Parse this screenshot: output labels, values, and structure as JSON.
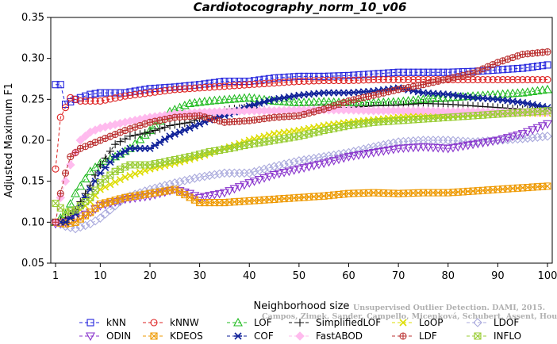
{
  "chart_data": {
    "type": "line",
    "title": "Cardiotocography_norm_10_v06",
    "xlabel": "Neighborhood size",
    "ylabel": "Adjusted Maximum F1",
    "xlim": [
      1,
      100
    ],
    "ylim": [
      0.05,
      0.35
    ],
    "xticks": [
      1,
      10,
      20,
      30,
      40,
      50,
      60,
      70,
      80,
      90,
      100
    ],
    "yticks": [
      0.05,
      0.1,
      0.15,
      0.2,
      0.25,
      0.3,
      0.35
    ],
    "grid": false,
    "legend_position": "bottom",
    "watermark": [
      "Unsupervised Outlier Detection. DAMI, 2015.",
      "Campos, Zimek, Sander, Campello, Micenková, Schubert, Assent, Houle"
    ],
    "series": [
      {
        "name": "kNN",
        "color": "#2222dd",
        "marker": "square",
        "dash": "4,3",
        "points": [
          [
            1,
            0.268
          ],
          [
            2,
            0.268
          ],
          [
            3,
            0.244
          ],
          [
            5,
            0.25
          ],
          [
            8,
            0.256
          ],
          [
            10,
            0.258
          ],
          [
            15,
            0.258
          ],
          [
            20,
            0.263
          ],
          [
            25,
            0.265
          ],
          [
            30,
            0.268
          ],
          [
            35,
            0.272
          ],
          [
            40,
            0.272
          ],
          [
            45,
            0.276
          ],
          [
            50,
            0.278
          ],
          [
            55,
            0.278
          ],
          [
            60,
            0.279
          ],
          [
            65,
            0.281
          ],
          [
            70,
            0.283
          ],
          [
            75,
            0.283
          ],
          [
            80,
            0.283
          ],
          [
            85,
            0.284
          ],
          [
            90,
            0.286
          ],
          [
            95,
            0.288
          ],
          [
            100,
            0.292
          ]
        ]
      },
      {
        "name": "kNNW",
        "color": "#dd2222",
        "marker": "circle",
        "dash": "4,3",
        "points": [
          [
            1,
            0.165
          ],
          [
            2,
            0.228
          ],
          [
            3,
            0.24
          ],
          [
            4,
            0.252
          ],
          [
            6,
            0.248
          ],
          [
            10,
            0.248
          ],
          [
            15,
            0.254
          ],
          [
            20,
            0.258
          ],
          [
            25,
            0.262
          ],
          [
            30,
            0.264
          ],
          [
            35,
            0.266
          ],
          [
            40,
            0.268
          ],
          [
            45,
            0.27
          ],
          [
            50,
            0.272
          ],
          [
            55,
            0.273
          ],
          [
            60,
            0.273
          ],
          [
            65,
            0.274
          ],
          [
            70,
            0.274
          ],
          [
            75,
            0.274
          ],
          [
            80,
            0.274
          ],
          [
            85,
            0.274
          ],
          [
            90,
            0.274
          ],
          [
            95,
            0.274
          ],
          [
            100,
            0.274
          ]
        ]
      },
      {
        "name": "LOF",
        "color": "#22bb22",
        "marker": "triangle-up",
        "dash": "4,3",
        "points": [
          [
            1,
            0.1
          ],
          [
            3,
            0.11
          ],
          [
            5,
            0.135
          ],
          [
            8,
            0.162
          ],
          [
            10,
            0.172
          ],
          [
            13,
            0.18
          ],
          [
            16,
            0.19
          ],
          [
            20,
            0.212
          ],
          [
            24,
            0.235
          ],
          [
            28,
            0.245
          ],
          [
            32,
            0.248
          ],
          [
            36,
            0.25
          ],
          [
            40,
            0.252
          ],
          [
            45,
            0.248
          ],
          [
            50,
            0.246
          ],
          [
            55,
            0.247
          ],
          [
            60,
            0.246
          ],
          [
            65,
            0.246
          ],
          [
            70,
            0.247
          ],
          [
            75,
            0.25
          ],
          [
            80,
            0.252
          ],
          [
            85,
            0.254
          ],
          [
            90,
            0.256
          ],
          [
            95,
            0.258
          ],
          [
            100,
            0.262
          ]
        ]
      },
      {
        "name": "SimplifiedLOF",
        "color": "#111111",
        "marker": "plus",
        "dash": "4,3",
        "points": [
          [
            1,
            0.1
          ],
          [
            3,
            0.105
          ],
          [
            5,
            0.115
          ],
          [
            8,
            0.145
          ],
          [
            10,
            0.17
          ],
          [
            13,
            0.195
          ],
          [
            16,
            0.205
          ],
          [
            20,
            0.21
          ],
          [
            24,
            0.218
          ],
          [
            28,
            0.222
          ],
          [
            32,
            0.232
          ],
          [
            36,
            0.238
          ],
          [
            40,
            0.24
          ],
          [
            45,
            0.235
          ],
          [
            50,
            0.238
          ],
          [
            55,
            0.24
          ],
          [
            60,
            0.24
          ],
          [
            65,
            0.242
          ],
          [
            70,
            0.243
          ],
          [
            75,
            0.245
          ],
          [
            80,
            0.244
          ],
          [
            85,
            0.242
          ],
          [
            90,
            0.24
          ],
          [
            95,
            0.238
          ],
          [
            100,
            0.236
          ]
        ]
      },
      {
        "name": "LoOP",
        "color": "#dddd00",
        "marker": "cross",
        "dash": "4,3",
        "points": [
          [
            1,
            0.1
          ],
          [
            3,
            0.102
          ],
          [
            5,
            0.11
          ],
          [
            8,
            0.125
          ],
          [
            10,
            0.14
          ],
          [
            15,
            0.155
          ],
          [
            20,
            0.165
          ],
          [
            25,
            0.172
          ],
          [
            30,
            0.18
          ],
          [
            35,
            0.19
          ],
          [
            40,
            0.2
          ],
          [
            45,
            0.208
          ],
          [
            50,
            0.212
          ],
          [
            55,
            0.218
          ],
          [
            60,
            0.222
          ],
          [
            65,
            0.225
          ],
          [
            70,
            0.228
          ],
          [
            75,
            0.23
          ],
          [
            80,
            0.23
          ],
          [
            85,
            0.232
          ],
          [
            90,
            0.232
          ],
          [
            95,
            0.233
          ],
          [
            100,
            0.233
          ]
        ]
      },
      {
        "name": "LDOF",
        "color": "#aaaadd",
        "marker": "diamond",
        "dash": "4,3",
        "points": [
          [
            1,
            0.1
          ],
          [
            3,
            0.095
          ],
          [
            5,
            0.092
          ],
          [
            8,
            0.098
          ],
          [
            10,
            0.105
          ],
          [
            15,
            0.13
          ],
          [
            20,
            0.14
          ],
          [
            25,
            0.148
          ],
          [
            30,
            0.155
          ],
          [
            35,
            0.16
          ],
          [
            40,
            0.16
          ],
          [
            45,
            0.168
          ],
          [
            50,
            0.175
          ],
          [
            55,
            0.18
          ],
          [
            60,
            0.185
          ],
          [
            65,
            0.192
          ],
          [
            70,
            0.198
          ],
          [
            75,
            0.2
          ],
          [
            80,
            0.2
          ],
          [
            85,
            0.198
          ],
          [
            90,
            0.2
          ],
          [
            95,
            0.202
          ],
          [
            100,
            0.205
          ]
        ]
      },
      {
        "name": "ODIN",
        "color": "#8833cc",
        "marker": "triangle-down",
        "dash": "4,3",
        "points": [
          [
            1,
            0.098
          ],
          [
            3,
            0.1
          ],
          [
            5,
            0.105
          ],
          [
            8,
            0.112
          ],
          [
            10,
            0.12
          ],
          [
            15,
            0.128
          ],
          [
            20,
            0.132
          ],
          [
            25,
            0.14
          ],
          [
            28,
            0.135
          ],
          [
            30,
            0.13
          ],
          [
            35,
            0.136
          ],
          [
            40,
            0.148
          ],
          [
            45,
            0.158
          ],
          [
            50,
            0.165
          ],
          [
            55,
            0.172
          ],
          [
            60,
            0.18
          ],
          [
            65,
            0.185
          ],
          [
            70,
            0.19
          ],
          [
            75,
            0.192
          ],
          [
            80,
            0.19
          ],
          [
            85,
            0.195
          ],
          [
            90,
            0.2
          ],
          [
            95,
            0.208
          ],
          [
            100,
            0.22
          ]
        ]
      },
      {
        "name": "KDEOS",
        "color": "#ee9900",
        "marker": "square-x",
        "dash": "4,3",
        "points": [
          [
            1,
            0.1
          ],
          [
            3,
            0.098
          ],
          [
            5,
            0.1
          ],
          [
            8,
            0.112
          ],
          [
            10,
            0.122
          ],
          [
            15,
            0.13
          ],
          [
            20,
            0.135
          ],
          [
            25,
            0.14
          ],
          [
            30,
            0.124
          ],
          [
            35,
            0.124
          ],
          [
            40,
            0.126
          ],
          [
            45,
            0.128
          ],
          [
            50,
            0.13
          ],
          [
            55,
            0.132
          ],
          [
            60,
            0.135
          ],
          [
            65,
            0.136
          ],
          [
            70,
            0.135
          ],
          [
            75,
            0.136
          ],
          [
            80,
            0.136
          ],
          [
            85,
            0.138
          ],
          [
            90,
            0.14
          ],
          [
            95,
            0.142
          ],
          [
            100,
            0.144
          ]
        ]
      },
      {
        "name": "COF",
        "color": "#112299",
        "marker": "asterisk",
        "dash": "4,3",
        "points": [
          [
            1,
            0.1
          ],
          [
            3,
            0.1
          ],
          [
            5,
            0.11
          ],
          [
            8,
            0.14
          ],
          [
            10,
            0.16
          ],
          [
            13,
            0.18
          ],
          [
            16,
            0.19
          ],
          [
            20,
            0.19
          ],
          [
            24,
            0.205
          ],
          [
            28,
            0.215
          ],
          [
            32,
            0.225
          ],
          [
            36,
            0.232
          ],
          [
            40,
            0.242
          ],
          [
            45,
            0.25
          ],
          [
            50,
            0.255
          ],
          [
            55,
            0.258
          ],
          [
            60,
            0.258
          ],
          [
            65,
            0.26
          ],
          [
            70,
            0.264
          ],
          [
            75,
            0.258
          ],
          [
            80,
            0.256
          ],
          [
            85,
            0.252
          ],
          [
            90,
            0.25
          ],
          [
            95,
            0.246
          ],
          [
            100,
            0.24
          ]
        ]
      },
      {
        "name": "FastABOD",
        "color": "#ffbbee",
        "marker": "diamond-filled",
        "dash": "4,3",
        "points": [
          [
            1,
            0.1
          ],
          [
            2,
            0.13
          ],
          [
            4,
            0.17
          ],
          [
            6,
            0.2
          ],
          [
            8,
            0.21
          ],
          [
            10,
            0.215
          ],
          [
            15,
            0.222
          ],
          [
            20,
            0.228
          ],
          [
            25,
            0.232
          ],
          [
            30,
            0.234
          ],
          [
            35,
            0.235
          ],
          [
            40,
            0.236
          ],
          [
            45,
            0.236
          ],
          [
            50,
            0.237
          ],
          [
            55,
            0.237
          ],
          [
            60,
            0.237
          ],
          [
            65,
            0.236
          ],
          [
            70,
            0.236
          ],
          [
            75,
            0.236
          ],
          [
            80,
            0.235
          ],
          [
            85,
            0.235
          ],
          [
            90,
            0.234
          ],
          [
            95,
            0.234
          ],
          [
            100,
            0.234
          ]
        ]
      },
      {
        "name": "LDF",
        "color": "#bb3333",
        "marker": "circle-plus",
        "dash": "4,3",
        "points": [
          [
            1,
            0.1
          ],
          [
            2,
            0.135
          ],
          [
            3,
            0.16
          ],
          [
            4,
            0.18
          ],
          [
            6,
            0.19
          ],
          [
            8,
            0.195
          ],
          [
            10,
            0.2
          ],
          [
            15,
            0.212
          ],
          [
            20,
            0.222
          ],
          [
            25,
            0.228
          ],
          [
            30,
            0.23
          ],
          [
            35,
            0.222
          ],
          [
            40,
            0.224
          ],
          [
            45,
            0.228
          ],
          [
            50,
            0.23
          ],
          [
            55,
            0.238
          ],
          [
            60,
            0.248
          ],
          [
            65,
            0.255
          ],
          [
            70,
            0.262
          ],
          [
            75,
            0.268
          ],
          [
            80,
            0.275
          ],
          [
            85,
            0.282
          ],
          [
            90,
            0.295
          ],
          [
            95,
            0.305
          ],
          [
            100,
            0.308
          ]
        ]
      },
      {
        "name": "INFLO",
        "color": "#99cc33",
        "marker": "square-x",
        "dash": "4,3",
        "points": [
          [
            1,
            0.123
          ],
          [
            3,
            0.112
          ],
          [
            5,
            0.115
          ],
          [
            8,
            0.13
          ],
          [
            10,
            0.148
          ],
          [
            13,
            0.162
          ],
          [
            16,
            0.17
          ],
          [
            20,
            0.17
          ],
          [
            24,
            0.175
          ],
          [
            28,
            0.18
          ],
          [
            32,
            0.186
          ],
          [
            36,
            0.19
          ],
          [
            40,
            0.195
          ],
          [
            45,
            0.2
          ],
          [
            50,
            0.205
          ],
          [
            55,
            0.212
          ],
          [
            60,
            0.218
          ],
          [
            65,
            0.222
          ],
          [
            70,
            0.224
          ],
          [
            75,
            0.226
          ],
          [
            80,
            0.228
          ],
          [
            85,
            0.23
          ],
          [
            90,
            0.232
          ],
          [
            95,
            0.234
          ],
          [
            100,
            0.236
          ]
        ]
      }
    ],
    "legend_rows": [
      [
        "kNN",
        "kNNW",
        "LOF",
        "SimplifiedLOF",
        "LoOP",
        "LDOF"
      ],
      [
        "ODIN",
        "KDEOS",
        "COF",
        "FastABOD",
        "LDF",
        "INFLO"
      ]
    ]
  }
}
